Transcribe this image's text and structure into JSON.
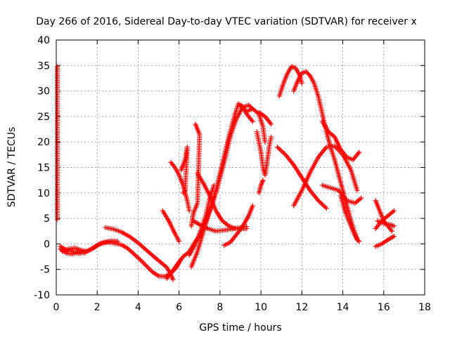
{
  "chart_data": {
    "type": "scatter",
    "title": "Day 266 of 2016, Sidereal Day-to-day VTEC variation (SDTVAR) for receiver x",
    "xlabel": "GPS time / hours",
    "ylabel": "SDTVAR / TECUs",
    "xlim": [
      0,
      18
    ],
    "ylim": [
      -10,
      40
    ],
    "xticks": [
      0,
      2,
      4,
      6,
      8,
      10,
      12,
      14,
      16,
      18
    ],
    "yticks": [
      -10,
      -5,
      0,
      5,
      10,
      15,
      20,
      25,
      30,
      35,
      40
    ],
    "grid": true,
    "legend": "none",
    "marker": "+",
    "color": "#ff0000",
    "series": [
      {
        "points": [
          [
            0.05,
            34.8
          ],
          [
            0.05,
            26.2
          ],
          [
            0.05,
            24.2
          ],
          [
            0.05,
            11.0
          ],
          [
            0.05,
            4.8
          ]
        ]
      },
      {
        "points": [
          [
            0.2,
            -0.5
          ],
          [
            0.5,
            -1.2
          ],
          [
            0.8,
            -1.5
          ],
          [
            1.1,
            -1.9
          ],
          [
            1.4,
            -1.6
          ],
          [
            1.7,
            -1.0
          ],
          [
            2.0,
            -0.3
          ],
          [
            2.3,
            0.2
          ],
          [
            2.6,
            0.3
          ],
          [
            2.9,
            0.1
          ],
          [
            3.2,
            -0.2
          ],
          [
            3.5,
            -0.9
          ],
          [
            3.8,
            -2.0
          ],
          [
            4.1,
            -3.1
          ],
          [
            4.4,
            -4.3
          ],
          [
            4.7,
            -5.5
          ],
          [
            5.0,
            -6.3
          ],
          [
            5.3,
            -6.4
          ],
          [
            5.6,
            -5.8
          ],
          [
            5.9,
            -4.5
          ],
          [
            6.1,
            -3.0
          ]
        ]
      },
      {
        "points": [
          [
            0.3,
            -1.5
          ],
          [
            0.6,
            -1.0
          ],
          [
            0.9,
            -0.8
          ],
          [
            1.2,
            -1.2
          ],
          [
            1.5,
            -1.5
          ],
          [
            1.8,
            -0.9
          ],
          [
            2.1,
            0.0
          ],
          [
            2.4,
            0.4
          ],
          [
            2.7,
            0.6
          ],
          [
            3.0,
            0.5
          ]
        ]
      },
      {
        "points": [
          [
            0.2,
            -1.0
          ],
          [
            0.5,
            -1.8
          ],
          [
            0.8,
            -2.0
          ],
          [
            1.1,
            -1.5
          ],
          [
            1.4,
            -1.8
          ]
        ]
      },
      {
        "points": [
          [
            2.4,
            3.2
          ],
          [
            2.8,
            2.9
          ],
          [
            3.2,
            2.3
          ],
          [
            3.6,
            1.4
          ],
          [
            4.0,
            0.2
          ],
          [
            4.4,
            -1.2
          ],
          [
            4.8,
            -2.6
          ],
          [
            5.1,
            -3.6
          ],
          [
            5.4,
            -4.6
          ],
          [
            5.6,
            -6.0
          ],
          [
            5.7,
            -7.0
          ]
        ]
      },
      {
        "points": [
          [
            5.2,
            6.5
          ],
          [
            5.5,
            4.5
          ],
          [
            5.8,
            2.0
          ],
          [
            6.0,
            0.5
          ]
        ]
      },
      {
        "points": [
          [
            5.4,
            -6.8
          ],
          [
            5.7,
            -5.2
          ],
          [
            6.0,
            -3.5
          ],
          [
            6.2,
            -2.5
          ],
          [
            6.5,
            -1.5
          ],
          [
            6.8,
            0.5
          ],
          [
            7.0,
            1.5
          ],
          [
            7.3,
            4.5
          ],
          [
            7.6,
            7.5
          ],
          [
            7.9,
            11.5
          ],
          [
            8.2,
            16.0
          ],
          [
            8.5,
            21.0
          ],
          [
            8.8,
            24.5
          ],
          [
            9.1,
            26.8
          ],
          [
            9.4,
            27.2
          ],
          [
            9.6,
            26.5
          ]
        ]
      },
      {
        "points": [
          [
            6.6,
            -4.5
          ],
          [
            6.9,
            -1.5
          ],
          [
            7.2,
            2.5
          ],
          [
            7.5,
            6.5
          ],
          [
            7.8,
            10.5
          ],
          [
            8.1,
            15.5
          ],
          [
            8.4,
            20.5
          ],
          [
            8.7,
            25.0
          ],
          [
            8.9,
            27.5
          ],
          [
            9.1,
            27.0
          ],
          [
            9.3,
            25.5
          ],
          [
            9.6,
            24.0
          ]
        ]
      },
      {
        "points": [
          [
            6.9,
            13.8
          ],
          [
            7.2,
            11.8
          ],
          [
            7.5,
            9.5
          ],
          [
            7.8,
            6.5
          ],
          [
            8.1,
            4.6
          ],
          [
            8.4,
            3.6
          ],
          [
            8.7,
            3.1
          ],
          [
            9.0,
            3.0
          ],
          [
            9.3,
            3.0
          ]
        ]
      },
      {
        "points": [
          [
            6.7,
            4.5
          ],
          [
            7.0,
            3.8
          ],
          [
            7.4,
            3.0
          ],
          [
            7.8,
            2.5
          ],
          [
            8.2,
            2.7
          ],
          [
            8.6,
            2.9
          ],
          [
            9.0,
            3.2
          ],
          [
            9.3,
            3.4
          ]
        ]
      },
      {
        "points": [
          [
            6.5,
            -2.2
          ],
          [
            6.8,
            0.0
          ],
          [
            7.0,
            2.0
          ],
          [
            7.3,
            5.5
          ],
          [
            7.5,
            9.0
          ],
          [
            7.7,
            11.5
          ]
        ]
      },
      {
        "points": [
          [
            5.6,
            16.0
          ],
          [
            5.8,
            15.0
          ],
          [
            6.0,
            13.5
          ],
          [
            6.2,
            11.5
          ],
          [
            6.4,
            8.5
          ],
          [
            6.5,
            6.5
          ]
        ]
      },
      {
        "points": [
          [
            6.1,
            14.5
          ],
          [
            6.3,
            16.5
          ],
          [
            6.4,
            19.0
          ],
          [
            6.3,
            10.5
          ],
          [
            6.2,
            10.0
          ]
        ]
      },
      {
        "points": [
          [
            6.8,
            23.5
          ],
          [
            7.0,
            21.5
          ],
          [
            6.9,
            8.0
          ],
          [
            6.7,
            6.0
          ],
          [
            6.6,
            3.5
          ]
        ]
      },
      {
        "points": [
          [
            8.2,
            -0.3
          ],
          [
            8.5,
            0.3
          ],
          [
            8.8,
            1.8
          ],
          [
            9.1,
            3.4
          ],
          [
            9.4,
            5.5
          ],
          [
            9.6,
            7.5
          ]
        ]
      },
      {
        "points": [
          [
            9.0,
            27.0
          ],
          [
            9.3,
            26.0
          ],
          [
            9.6,
            26.5
          ],
          [
            9.9,
            25.5
          ],
          [
            10.1,
            23.0
          ],
          [
            10.2,
            20.0
          ]
        ]
      },
      {
        "points": [
          [
            9.8,
            22.0
          ],
          [
            10.0,
            18.0
          ],
          [
            10.1,
            15.0
          ],
          [
            10.2,
            13.5
          ],
          [
            10.3,
            16.0
          ],
          [
            10.4,
            19.0
          ],
          [
            10.5,
            21.0
          ]
        ]
      },
      {
        "points": [
          [
            9.9,
            25.8
          ],
          [
            10.2,
            25.0
          ],
          [
            10.4,
            24.0
          ],
          [
            10.5,
            23.5
          ]
        ]
      },
      {
        "points": [
          [
            9.9,
            10.0
          ],
          [
            10.0,
            11.5
          ],
          [
            10.1,
            12.5
          ]
        ]
      },
      {
        "points": [
          [
            10.9,
            29.0
          ],
          [
            11.1,
            31.5
          ],
          [
            11.3,
            33.5
          ],
          [
            11.5,
            34.8
          ],
          [
            11.7,
            34.5
          ],
          [
            11.9,
            33.0
          ],
          [
            12.0,
            31.5
          ]
        ]
      },
      {
        "points": [
          [
            11.6,
            30.0
          ],
          [
            11.8,
            32.0
          ],
          [
            12.0,
            33.5
          ],
          [
            12.2,
            33.8
          ],
          [
            12.4,
            33.0
          ],
          [
            12.6,
            31.5
          ],
          [
            12.8,
            29.0
          ],
          [
            13.0,
            25.5
          ],
          [
            13.2,
            22.0
          ],
          [
            13.4,
            19.0
          ],
          [
            13.6,
            16.5
          ],
          [
            13.8,
            13.5
          ],
          [
            14.0,
            10.5
          ],
          [
            14.2,
            7.5
          ],
          [
            14.4,
            4.5
          ],
          [
            14.6,
            2.0
          ],
          [
            14.7,
            1.0
          ]
        ]
      },
      {
        "points": [
          [
            10.8,
            19.0
          ],
          [
            11.2,
            17.5
          ],
          [
            11.6,
            15.5
          ],
          [
            12.0,
            13.0
          ],
          [
            12.4,
            10.5
          ],
          [
            12.8,
            8.5
          ],
          [
            13.2,
            7.0
          ]
        ]
      },
      {
        "points": [
          [
            11.6,
            7.5
          ],
          [
            12.0,
            10.5
          ],
          [
            12.4,
            14.0
          ],
          [
            12.8,
            17.0
          ],
          [
            13.2,
            19.0
          ],
          [
            13.6,
            19.2
          ],
          [
            14.0,
            17.5
          ],
          [
            14.4,
            14.5
          ],
          [
            14.7,
            10.5
          ]
        ]
      },
      {
        "points": [
          [
            13.0,
            24.0
          ],
          [
            13.3,
            22.0
          ],
          [
            13.6,
            21.0
          ],
          [
            13.9,
            18.5
          ],
          [
            14.2,
            17.0
          ],
          [
            14.5,
            16.5
          ],
          [
            14.8,
            18.0
          ]
        ]
      },
      {
        "points": [
          [
            13.0,
            11.5
          ],
          [
            13.4,
            11.0
          ],
          [
            13.8,
            10.5
          ],
          [
            14.2,
            8.5
          ],
          [
            14.6,
            8.0
          ],
          [
            14.9,
            9.0
          ]
        ]
      },
      {
        "points": [
          [
            13.9,
            9.5
          ],
          [
            14.1,
            6.5
          ],
          [
            14.3,
            4.5
          ],
          [
            14.5,
            2.5
          ],
          [
            14.7,
            0.8
          ],
          [
            14.8,
            0.5
          ]
        ]
      },
      {
        "points": [
          [
            15.6,
            8.5
          ],
          [
            15.8,
            6.5
          ],
          [
            16.0,
            4.5
          ],
          [
            16.2,
            3.5
          ],
          [
            16.4,
            2.5
          ]
        ]
      },
      {
        "points": [
          [
            15.6,
            3.0
          ],
          [
            15.9,
            4.5
          ],
          [
            16.2,
            5.5
          ],
          [
            16.5,
            6.5
          ]
        ]
      },
      {
        "points": [
          [
            15.6,
            -0.5
          ],
          [
            15.9,
            0.0
          ],
          [
            16.2,
            0.8
          ],
          [
            16.5,
            1.5
          ]
        ]
      },
      {
        "points": [
          [
            15.7,
            4.5
          ],
          [
            16.0,
            4.0
          ],
          [
            16.3,
            3.8
          ],
          [
            16.5,
            3.5
          ]
        ]
      }
    ]
  }
}
